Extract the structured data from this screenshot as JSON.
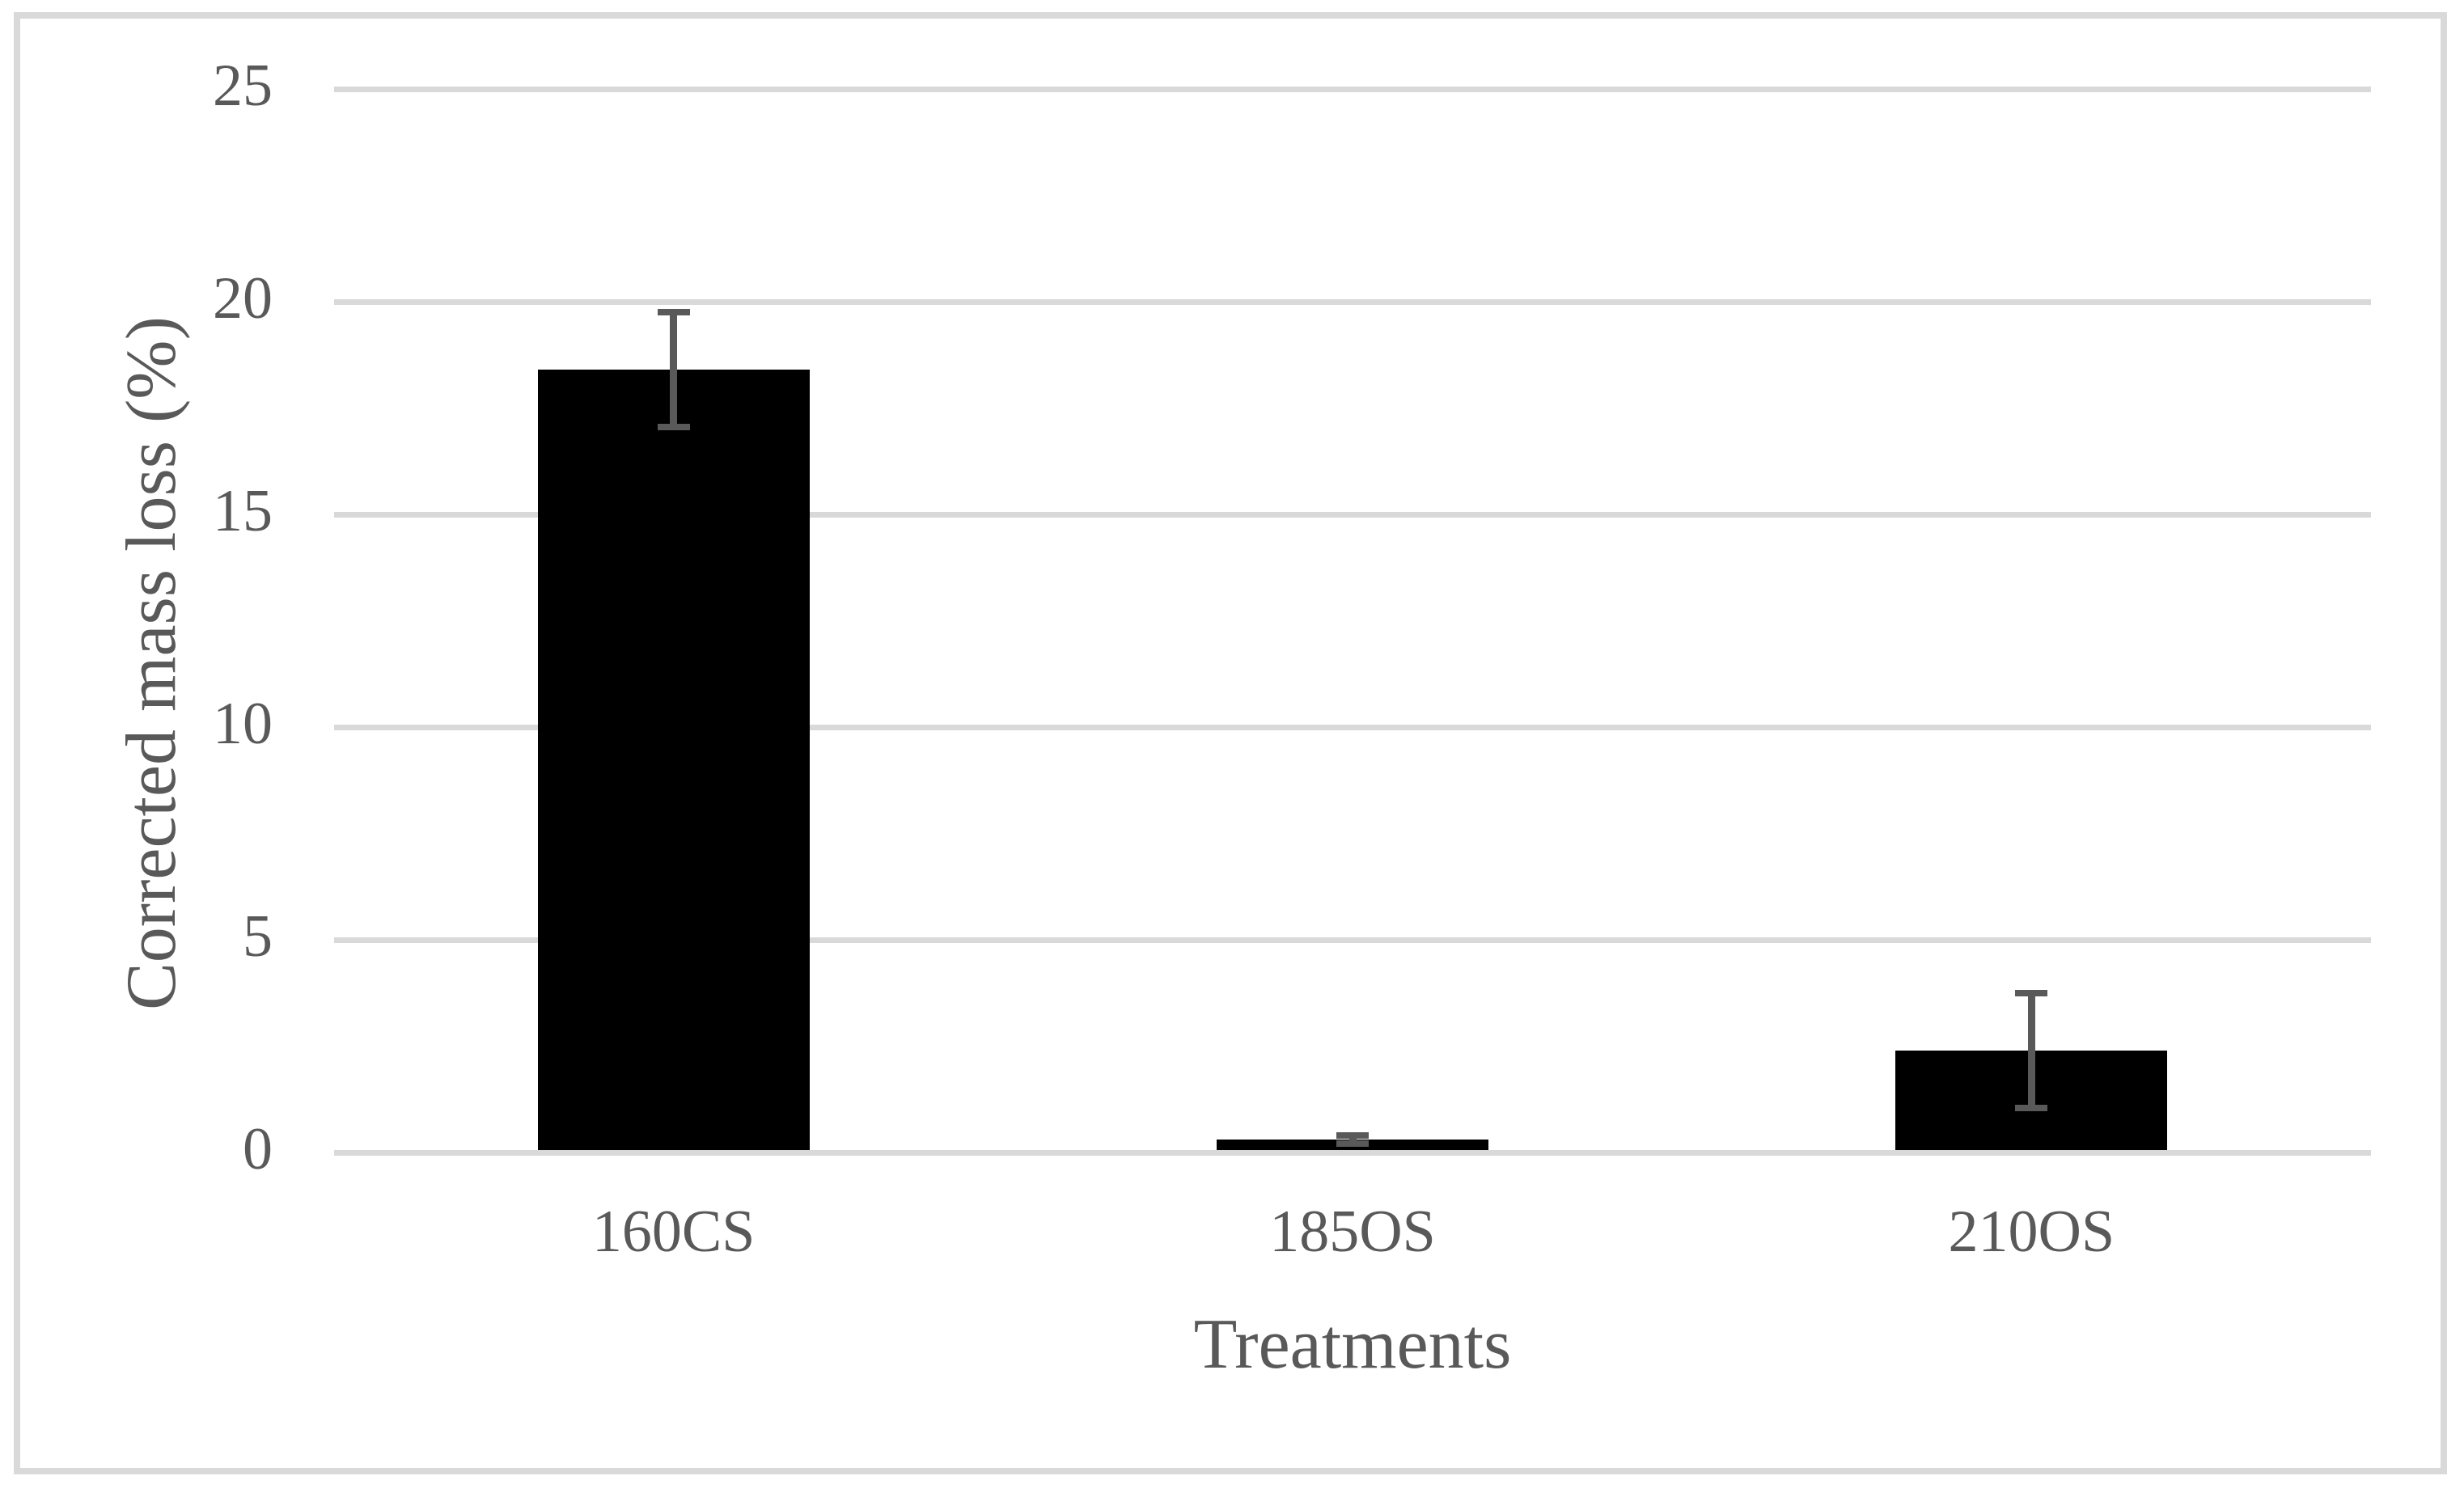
{
  "chart_data": {
    "type": "bar",
    "title": "",
    "categories": [
      "160CS",
      "185OS",
      "210OS"
    ],
    "values": [
      18.4,
      0.3,
      2.4
    ],
    "error_bars_plus": [
      1.35,
      0.1,
      1.35
    ],
    "error_bars_minus": [
      1.35,
      0.1,
      1.35
    ],
    "xlabel": "Treatments",
    "ylabel": "Corrected mass loss (%)",
    "ylim": [
      0,
      25
    ],
    "yticks": [
      0,
      5,
      10,
      15,
      20,
      25
    ],
    "grid": "horizontal-only",
    "legend": "none",
    "bar_gap_note": "single series, bar width ~40% of category slot",
    "colors": {
      "bar_fill": "#000000",
      "error_bar": "#595959",
      "gridline": "#d9d9d9",
      "figure_border": "#d9d9d9",
      "text": "#595959",
      "background": "#ffffff"
    }
  }
}
